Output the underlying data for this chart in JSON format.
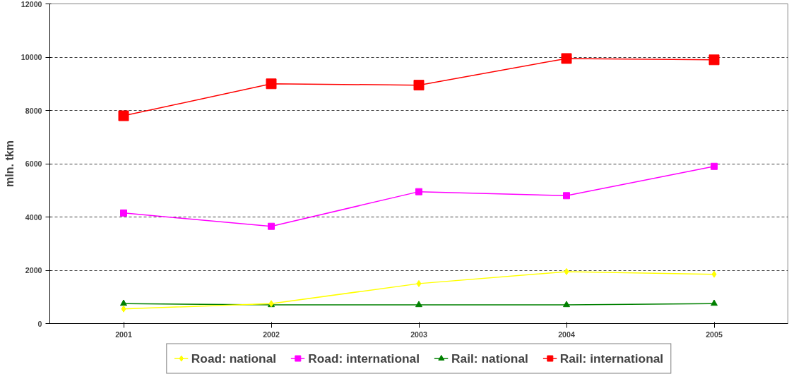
{
  "chart_data": {
    "type": "line",
    "categories": [
      "2001",
      "2002",
      "2003",
      "2004",
      "2005"
    ],
    "ylabel": "mln. tkm",
    "ylim": [
      0,
      12000
    ],
    "yticks": [
      0,
      2000,
      4000,
      6000,
      8000,
      10000,
      12000
    ],
    "grid": "y",
    "legend": "bottom",
    "line_style": "solid",
    "series": [
      {
        "name": "Road: national",
        "color": "#ffff00",
        "marker": "diamond",
        "values": [
          550,
          750,
          1500,
          1950,
          1850
        ]
      },
      {
        "name": "Road: international",
        "color": "#ff00ff",
        "marker": "square",
        "values": [
          4150,
          3650,
          4950,
          4800,
          5900
        ]
      },
      {
        "name": "Rail: national",
        "color": "#008000",
        "marker": "triangle",
        "values": [
          750,
          700,
          700,
          700,
          750
        ]
      },
      {
        "name": "Rail: international",
        "color": "#ff0000",
        "marker": "square",
        "values": [
          7800,
          9000,
          8950,
          9950,
          9900
        ]
      }
    ]
  }
}
